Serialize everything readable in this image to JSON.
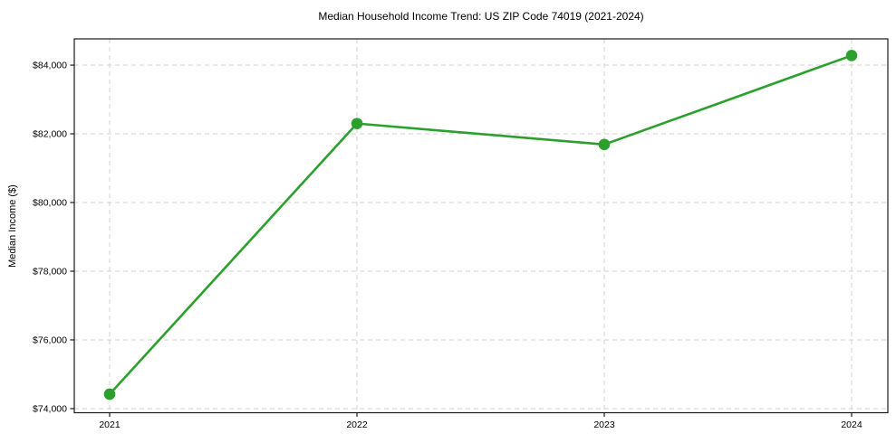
{
  "chart_data": {
    "type": "line",
    "title": "Median Household Income Trend: US ZIP Code 74019 (2021-2024)",
    "xlabel": "",
    "ylabel": "Median Income ($)",
    "categories": [
      "2021",
      "2022",
      "2023",
      "2024"
    ],
    "values": [
      74420,
      82300,
      81690,
      84280
    ],
    "yticks": [
      74000,
      76000,
      78000,
      80000,
      82000,
      84000
    ],
    "ytick_labels": [
      "$74,000",
      "$76,000",
      "$78,000",
      "$80,000",
      "$82,000",
      "$84,000"
    ],
    "ylim": [
      73880,
      84765
    ],
    "grid": true,
    "grid_style": "dashed",
    "legend": "none",
    "marker": "circle",
    "colors": {
      "line": "#2ca02c",
      "marker": "#2ca02c",
      "grid": "#d0d0d0",
      "spine": "#1a1a1a",
      "text": "#000000",
      "background": "#ffffff"
    }
  }
}
